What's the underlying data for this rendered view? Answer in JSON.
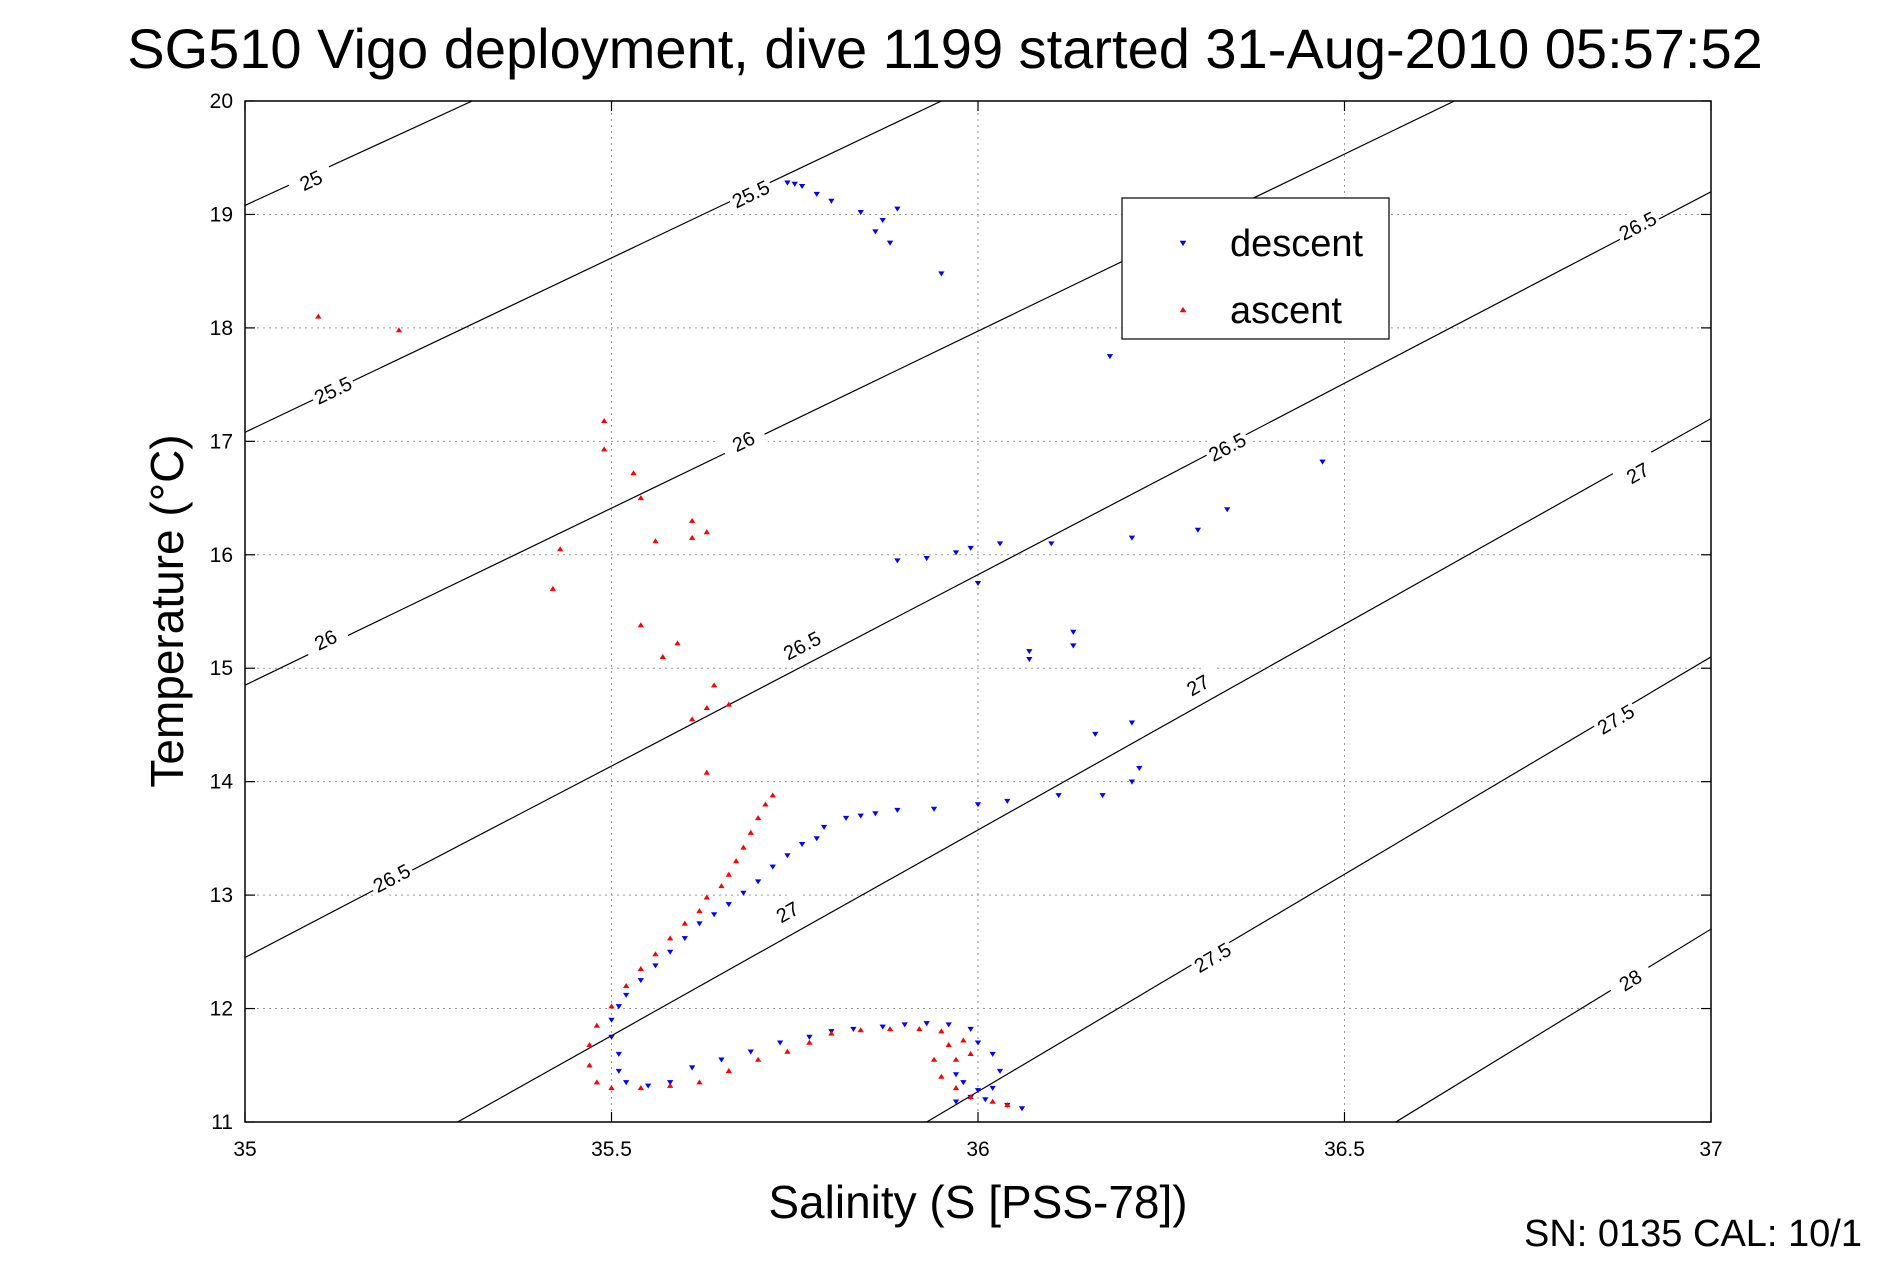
{
  "chart_data": {
    "type": "scatter",
    "title": "SG510 Vigo deployment, dive 1199 started 31-Aug-2010 05:57:52",
    "xlabel": "Salinity (S [PSS-78])",
    "ylabel": "Temperature (°C)",
    "xlim": [
      35,
      37
    ],
    "ylim": [
      11,
      20
    ],
    "x_ticks": [
      35,
      35.5,
      36,
      36.5,
      37
    ],
    "x_tick_labels": [
      "35",
      "35.5",
      "36",
      "36.5",
      "37"
    ],
    "y_ticks": [
      11,
      12,
      13,
      14,
      15,
      16,
      17,
      18,
      19,
      20
    ],
    "y_tick_labels": [
      "11",
      "12",
      "13",
      "14",
      "15",
      "16",
      "17",
      "18",
      "19",
      "20"
    ],
    "grid": true,
    "legend_position": "top-right",
    "footer": "SN: 0135  CAL: 10/1",
    "density_contours": [
      {
        "label": "25",
        "points": [
          [
            35,
            19.08
          ],
          [
            35.31,
            20.0
          ]
        ],
        "label_positions": [
          [
            35.09,
            19.3
          ]
        ]
      },
      {
        "label": "25.5",
        "points": [
          [
            35,
            17.08
          ],
          [
            35.95,
            20.0
          ]
        ],
        "label_positions": [
          [
            35.12,
            17.45
          ],
          [
            35.69,
            19.18
          ]
        ]
      },
      {
        "label": "26",
        "points": [
          [
            35,
            14.85
          ],
          [
            36.65,
            20.0
          ]
        ],
        "label_positions": [
          [
            35.11,
            15.25
          ],
          [
            35.68,
            17.0
          ]
        ]
      },
      {
        "label": "26.5",
        "points": [
          [
            35,
            12.45
          ],
          [
            37,
            19.2
          ]
        ],
        "label_positions": [
          [
            35.2,
            13.15
          ],
          [
            35.76,
            15.2
          ],
          [
            36.34,
            16.95
          ],
          [
            36.9,
            18.9
          ]
        ]
      },
      {
        "label": "27",
        "points": [
          [
            35.29,
            11.0
          ],
          [
            37,
            17.2
          ]
        ],
        "label_positions": [
          [
            35.74,
            12.85
          ],
          [
            36.3,
            14.85
          ],
          [
            36.9,
            16.72
          ]
        ]
      },
      {
        "label": "27.5",
        "points": [
          [
            35.93,
            11.0
          ],
          [
            37,
            15.1
          ]
        ],
        "label_positions": [
          [
            36.32,
            12.45
          ],
          [
            36.87,
            14.55
          ]
        ]
      },
      {
        "label": "28",
        "points": [
          [
            36.57,
            11.0
          ],
          [
            37,
            12.7
          ]
        ],
        "label_positions": [
          [
            36.89,
            12.25
          ]
        ]
      }
    ],
    "series": [
      {
        "name": "descent",
        "color": "#0000ff",
        "marker": "triangle-down",
        "points": [
          [
            35.74,
            19.28
          ],
          [
            35.75,
            19.27
          ],
          [
            35.76,
            19.25
          ],
          [
            35.78,
            19.18
          ],
          [
            35.8,
            19.12
          ],
          [
            35.84,
            19.02
          ],
          [
            35.87,
            18.95
          ],
          [
            35.89,
            19.05
          ],
          [
            35.86,
            18.85
          ],
          [
            35.88,
            18.75
          ],
          [
            35.95,
            18.48
          ],
          [
            36.18,
            17.75
          ],
          [
            36.47,
            16.82
          ],
          [
            35.89,
            15.95
          ],
          [
            35.93,
            15.97
          ],
          [
            35.97,
            16.02
          ],
          [
            35.99,
            16.06
          ],
          [
            36.03,
            16.1
          ],
          [
            36.1,
            16.1
          ],
          [
            36.21,
            16.15
          ],
          [
            36.3,
            16.22
          ],
          [
            36.34,
            16.4
          ],
          [
            36.0,
            15.75
          ],
          [
            36.07,
            15.15
          ],
          [
            36.07,
            15.08
          ],
          [
            36.13,
            15.32
          ],
          [
            36.13,
            15.2
          ],
          [
            36.16,
            14.42
          ],
          [
            36.21,
            14.52
          ],
          [
            36.22,
            14.12
          ],
          [
            36.21,
            14.0
          ],
          [
            36.17,
            13.88
          ],
          [
            36.11,
            13.88
          ],
          [
            36.04,
            13.83
          ],
          [
            36.0,
            13.8
          ],
          [
            35.94,
            13.76
          ],
          [
            35.89,
            13.75
          ],
          [
            35.86,
            13.72
          ],
          [
            35.84,
            13.7
          ],
          [
            35.82,
            13.68
          ],
          [
            35.79,
            13.6
          ],
          [
            35.78,
            13.5
          ],
          [
            35.76,
            13.45
          ],
          [
            35.74,
            13.35
          ],
          [
            35.72,
            13.25
          ],
          [
            35.7,
            13.12
          ],
          [
            35.68,
            13.02
          ],
          [
            35.66,
            12.92
          ],
          [
            35.64,
            12.83
          ],
          [
            35.62,
            12.75
          ],
          [
            35.6,
            12.62
          ],
          [
            35.58,
            12.5
          ],
          [
            35.56,
            12.38
          ],
          [
            35.54,
            12.25
          ],
          [
            35.52,
            12.12
          ],
          [
            35.51,
            12.02
          ],
          [
            35.5,
            11.9
          ],
          [
            35.5,
            11.75
          ],
          [
            35.51,
            11.6
          ],
          [
            35.51,
            11.45
          ],
          [
            35.52,
            11.35
          ],
          [
            35.55,
            11.32
          ],
          [
            35.58,
            11.35
          ],
          [
            35.61,
            11.48
          ],
          [
            35.65,
            11.55
          ],
          [
            35.69,
            11.62
          ],
          [
            35.73,
            11.7
          ],
          [
            35.77,
            11.75
          ],
          [
            35.8,
            11.8
          ],
          [
            35.83,
            11.82
          ],
          [
            35.87,
            11.84
          ],
          [
            35.9,
            11.86
          ],
          [
            35.93,
            11.87
          ],
          [
            35.96,
            11.86
          ],
          [
            35.99,
            11.82
          ],
          [
            36.0,
            11.7
          ],
          [
            36.02,
            11.6
          ],
          [
            36.03,
            11.45
          ],
          [
            36.02,
            11.3
          ],
          [
            36.01,
            11.2
          ],
          [
            36.04,
            11.15
          ],
          [
            36.06,
            11.12
          ],
          [
            35.97,
            11.42
          ],
          [
            35.98,
            11.35
          ],
          [
            36.0,
            11.28
          ],
          [
            35.99,
            11.22
          ],
          [
            35.97,
            11.18
          ]
        ]
      },
      {
        "name": "ascent",
        "color": "#ff0000",
        "marker": "triangle-up",
        "points": [
          [
            35.1,
            18.1
          ],
          [
            35.21,
            17.98
          ],
          [
            35.49,
            17.18
          ],
          [
            35.49,
            16.93
          ],
          [
            35.53,
            16.72
          ],
          [
            35.54,
            16.5
          ],
          [
            35.61,
            16.3
          ],
          [
            35.63,
            16.2
          ],
          [
            35.61,
            16.15
          ],
          [
            35.56,
            16.12
          ],
          [
            35.43,
            16.05
          ],
          [
            35.42,
            15.7
          ],
          [
            35.54,
            15.38
          ],
          [
            35.59,
            15.22
          ],
          [
            35.57,
            15.1
          ],
          [
            35.64,
            14.85
          ],
          [
            35.66,
            14.68
          ],
          [
            35.63,
            14.65
          ],
          [
            35.61,
            14.55
          ],
          [
            35.63,
            14.08
          ],
          [
            35.72,
            13.88
          ],
          [
            35.71,
            13.8
          ],
          [
            35.7,
            13.68
          ],
          [
            35.69,
            13.55
          ],
          [
            35.68,
            13.42
          ],
          [
            35.67,
            13.3
          ],
          [
            35.66,
            13.18
          ],
          [
            35.65,
            13.08
          ],
          [
            35.63,
            12.98
          ],
          [
            35.62,
            12.86
          ],
          [
            35.6,
            12.75
          ],
          [
            35.58,
            12.62
          ],
          [
            35.56,
            12.48
          ],
          [
            35.54,
            12.35
          ],
          [
            35.52,
            12.2
          ],
          [
            35.5,
            12.02
          ],
          [
            35.48,
            11.85
          ],
          [
            35.47,
            11.68
          ],
          [
            35.47,
            11.5
          ],
          [
            35.48,
            11.35
          ],
          [
            35.5,
            11.3
          ],
          [
            35.54,
            11.3
          ],
          [
            35.58,
            11.32
          ],
          [
            35.62,
            11.35
          ],
          [
            35.66,
            11.45
          ],
          [
            35.7,
            11.55
          ],
          [
            35.74,
            11.62
          ],
          [
            35.77,
            11.7
          ],
          [
            35.8,
            11.78
          ],
          [
            35.84,
            11.81
          ],
          [
            35.88,
            11.82
          ],
          [
            35.92,
            11.82
          ],
          [
            35.95,
            11.8
          ],
          [
            35.98,
            11.72
          ],
          [
            35.99,
            11.6
          ],
          [
            35.96,
            11.68
          ],
          [
            35.94,
            11.55
          ],
          [
            35.95,
            11.4
          ],
          [
            35.97,
            11.3
          ],
          [
            35.99,
            11.22
          ],
          [
            36.02,
            11.18
          ],
          [
            36.04,
            11.15
          ],
          [
            35.97,
            11.55
          ]
        ]
      }
    ]
  }
}
